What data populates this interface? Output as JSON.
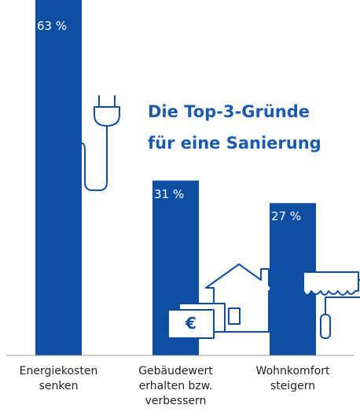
{
  "chart_data": {
    "type": "bar",
    "title": "Die Top-3-Gründe für eine Sanierung",
    "categories": [
      "Energiekosten senken",
      "Gebäudewert erhalten bzw. verbessern",
      "Wohnkomfort steigern"
    ],
    "values": [
      63,
      31,
      27
    ],
    "value_labels": [
      "63 %",
      "31 %",
      "27 %"
    ],
    "color": "#0f4fa3"
  }
}
